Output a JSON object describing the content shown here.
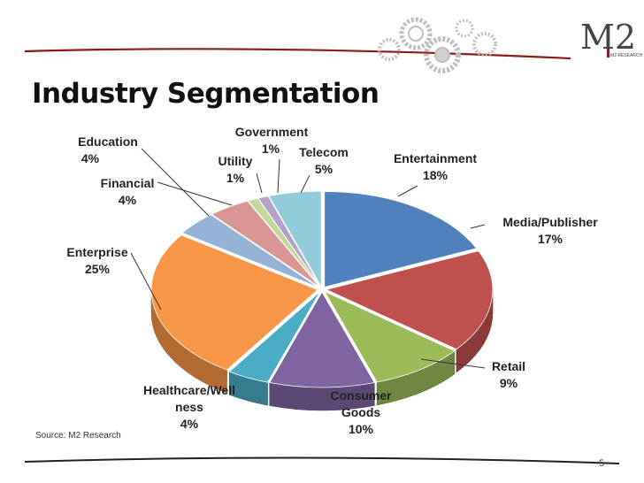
{
  "slide": {
    "source": "Source: M2 Research",
    "page_number": "5",
    "logo": {
      "mark": "M2",
      "tagline": "M2 RESEARCH"
    }
  },
  "colors": {
    "blue": "#4F81BD",
    "red": "#C0504D",
    "green": "#9BBB59",
    "purple": "#8064A2",
    "teal": "#4BACC6",
    "orange": "#F79646",
    "lightblue": "#95B3D7",
    "pink": "#D99694",
    "lightgreen": "#C3D69B",
    "lavender": "#B2A2C7",
    "aqua": "#92CDDC",
    "accent_red": "#8B1A1A"
  },
  "chart_data": {
    "type": "pie",
    "title": "Industry Segmentation",
    "style": "3d-exploded",
    "slices": [
      {
        "name": "Entertainment",
        "value": 18,
        "label": "18%",
        "color": "#4F81BD"
      },
      {
        "name": "Media/Publisher",
        "value": 17,
        "label": "17%",
        "color": "#C0504D"
      },
      {
        "name": "Retail",
        "value": 9,
        "label": "9%",
        "color": "#9BBB59"
      },
      {
        "name": "Consumer Goods",
        "value": 10,
        "label": "10%",
        "color": "#8064A2"
      },
      {
        "name": "Healthcare/Wellness",
        "value": 4,
        "label": "4%",
        "color": "#4BACC6"
      },
      {
        "name": "Enterprise",
        "value": 25,
        "label": "25%",
        "color": "#F79646"
      },
      {
        "name": "Financial",
        "value": 4,
        "label": "4%",
        "color": "#95B3D7"
      },
      {
        "name": "Education",
        "value": 4,
        "label": "4%",
        "color": "#D99694"
      },
      {
        "name": "Utility",
        "value": 1,
        "label": "1%",
        "color": "#C3D69B"
      },
      {
        "name": "Government",
        "value": 1,
        "label": "1%",
        "color": "#B2A2C7"
      },
      {
        "name": "Telecom",
        "value": 5,
        "label": "5%",
        "color": "#92CDDC"
      }
    ],
    "display_names": {
      "Entertainment": "Entertainment",
      "Media/Publisher": "Media/Publisher",
      "Retail": "Retail",
      "Consumer_1": "Consumer",
      "Consumer_2": "Goods",
      "Healthcare_1": "Healthcare/Well",
      "Healthcare_2": "ness",
      "Enterprise": "Enterprise",
      "Financial": "Financial",
      "Education": "Education",
      "Utility": "Utility",
      "Government": "Government",
      "Telecom": "Telecom"
    }
  }
}
